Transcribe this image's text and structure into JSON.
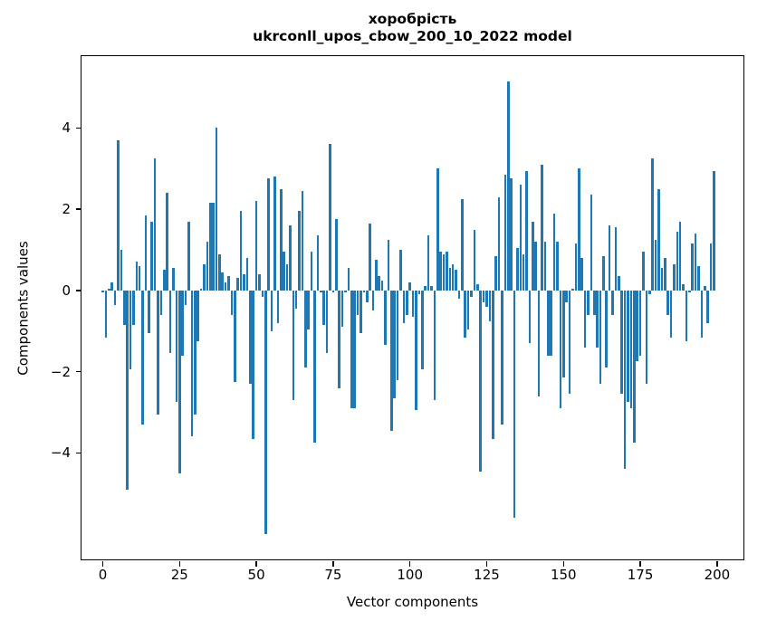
{
  "figure": {
    "title_line1": "хоробрість",
    "title_line2": "ukrconll_upos_cbow_200_10_2022 model",
    "xlabel": "Vector components",
    "ylabel": "Components values"
  },
  "chart_data": {
    "type": "bar",
    "title": "хоробрість\nukrconll_upos_cbow_200_10_2022 model",
    "xlabel": "Vector components",
    "ylabel": "Components values",
    "bar_color": "#1f77b4",
    "grid": false,
    "legend": "none",
    "x_ticks": [
      0,
      25,
      50,
      75,
      100,
      125,
      150,
      175,
      200
    ],
    "y_ticks": [
      4,
      2,
      0,
      -2,
      -4
    ],
    "y_tick_labels": [
      "4",
      "2",
      "0",
      "−2",
      "−4"
    ],
    "xlim": [
      -7,
      208
    ],
    "ylim": [
      -6.6,
      5.8
    ],
    "n_components": 200,
    "values": [
      -0.05,
      -1.15,
      0.05,
      0.2,
      -0.35,
      3.7,
      1.0,
      -0.85,
      -4.9,
      -1.95,
      -0.85,
      0.7,
      0.6,
      -3.3,
      1.85,
      -1.05,
      1.7,
      3.25,
      -3.05,
      -0.6,
      0.5,
      2.4,
      -1.55,
      0.55,
      -2.75,
      -4.5,
      -1.6,
      -0.35,
      1.7,
      -3.6,
      -3.05,
      -1.25,
      0.05,
      0.65,
      1.2,
      2.15,
      2.15,
      4.0,
      0.9,
      0.45,
      0.2,
      0.35,
      -0.6,
      -2.25,
      0.3,
      1.95,
      0.4,
      0.8,
      -2.3,
      -3.65,
      2.2,
      0.4,
      -0.15,
      -6.0,
      2.75,
      -1.0,
      2.8,
      -0.8,
      2.5,
      0.95,
      0.65,
      1.6,
      -2.7,
      -0.45,
      1.95,
      2.45,
      -1.9,
      -0.95,
      0.95,
      -3.75,
      1.35,
      -0.05,
      -0.85,
      -1.55,
      3.6,
      -0.05,
      1.75,
      -2.4,
      -0.9,
      -0.05,
      0.55,
      -2.9,
      -2.9,
      -0.6,
      -1.05,
      -0.05,
      -0.3,
      1.65,
      -0.5,
      0.75,
      0.35,
      0.25,
      -1.35,
      1.25,
      -3.45,
      -2.65,
      -2.2,
      1.0,
      -0.8,
      -0.6,
      0.2,
      -0.65,
      -2.95,
      -0.1,
      -1.95,
      0.1,
      1.35,
      0.1,
      -2.7,
      3.0,
      0.95,
      0.9,
      0.95,
      0.55,
      0.65,
      0.5,
      -0.2,
      2.25,
      -1.15,
      -0.95,
      -0.15,
      1.5,
      0.15,
      -4.45,
      -0.3,
      -0.4,
      -0.75,
      -3.65,
      0.85,
      2.3,
      -3.3,
      2.85,
      5.15,
      2.75,
      -5.6,
      1.05,
      2.6,
      0.9,
      2.95,
      -1.3,
      1.7,
      1.2,
      -2.6,
      3.1,
      1.2,
      -1.6,
      -1.6,
      1.9,
      1.2,
      -2.9,
      -2.15,
      -0.3,
      -2.55,
      0.05,
      1.15,
      3.0,
      0.8,
      -1.4,
      -0.6,
      2.35,
      -0.6,
      -1.4,
      -2.3,
      0.85,
      -1.9,
      1.6,
      -0.6,
      1.55,
      0.35,
      -2.55,
      -4.4,
      -2.75,
      -2.9,
      -3.75,
      -1.75,
      -1.6,
      0.95,
      -2.3,
      -0.1,
      3.25,
      1.25,
      2.5,
      0.55,
      0.8,
      -0.6,
      -1.15,
      0.65,
      1.45,
      1.7,
      0.15,
      -1.25,
      -0.05,
      1.15,
      1.4,
      0.6,
      -1.15,
      0.1,
      -0.8,
      1.15,
      2.95
    ]
  }
}
